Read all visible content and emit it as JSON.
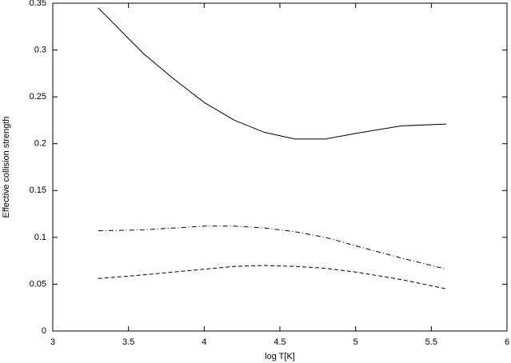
{
  "chart_data": {
    "type": "line",
    "xlabel": "log T[K]",
    "ylabel": "Effective collision strength",
    "x": [
      3.3,
      3.6,
      3.8,
      4.0,
      4.2,
      4.4,
      4.6,
      4.8,
      5.0,
      5.3,
      5.6
    ],
    "series": [
      {
        "color": "#000000",
        "dash": "solid",
        "values": [
          0.345,
          0.296,
          0.269,
          0.244,
          0.225,
          0.212,
          0.205,
          0.205,
          0.211,
          0.219,
          0.221
        ]
      },
      {
        "color": "#000000",
        "dash": "dashdot",
        "values": [
          0.107,
          0.108,
          0.11,
          0.112,
          0.112,
          0.11,
          0.106,
          0.1,
          0.091,
          0.078,
          0.066
        ]
      },
      {
        "color": "#000000",
        "dash": "dashed",
        "values": [
          0.056,
          0.06,
          0.063,
          0.066,
          0.069,
          0.07,
          0.069,
          0.067,
          0.063,
          0.055,
          0.045
        ]
      }
    ],
    "xlim": [
      3,
      6
    ],
    "xticks": [
      3,
      3.5,
      4,
      4.5,
      5,
      5.5,
      6
    ],
    "ylim": [
      0,
      0.35
    ],
    "yticks": [
      0,
      0.05,
      0.1,
      0.15,
      0.2,
      0.25,
      0.3,
      0.35
    ],
    "grid": false
  }
}
